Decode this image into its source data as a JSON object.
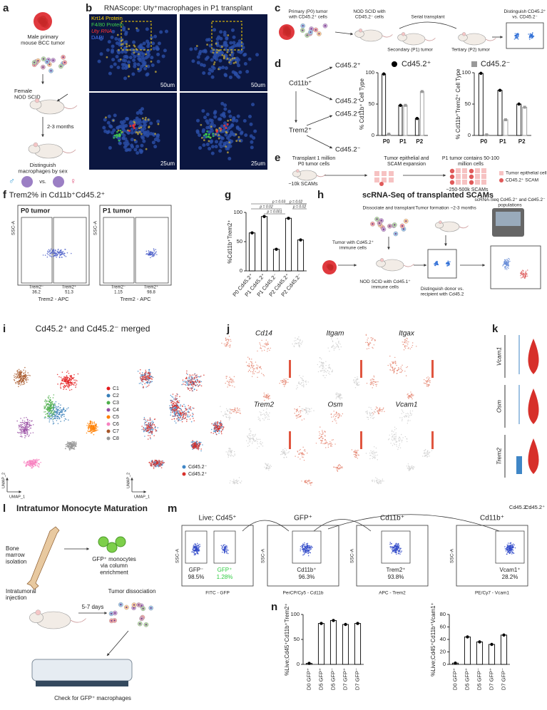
{
  "panel_labels": [
    "a",
    "b",
    "c",
    "d",
    "e",
    "f",
    "g",
    "h",
    "i",
    "j",
    "k",
    "l",
    "m",
    "n"
  ],
  "a": {
    "steps": [
      "Male primary mouse BCC tumor",
      "Female NOD SCID",
      "2-3 months",
      "Distinguish macrophages by sex",
      "vs."
    ],
    "sex_symbols": [
      "♂",
      "♀"
    ]
  },
  "b": {
    "title": "RNAScope: Uty⁺macrophages in P1 transplant",
    "legend": [
      "Krt14 Protein",
      "F4/80 Protein",
      "Uty RNA",
      "DAPI"
    ],
    "scale_top": "50um",
    "scale_bottom": "25um"
  },
  "c": {
    "steps": [
      "Primary (P0) tumor with CD45.2⁺ cells",
      "NOD SCID with CD45.2⁻ cells",
      "Serial transplant",
      "Secondary (P1) tumor",
      "Tertiary (P2) tumor",
      "Distinguish CD45.2⁺ vs. CD45.2⁻"
    ]
  },
  "d": {
    "nodes": [
      "Cd11b⁺",
      "Cd45.2⁺",
      "Cd45.2⁻",
      "Trem2⁺",
      "Cd45.2⁺",
      "Cd45.2⁻"
    ]
  },
  "e": {
    "steps": [
      "Transplant 1 million P0 tumor cells",
      "Tumor epithelial and SCAM expansion",
      "P1 tumor contains 50-100 million cells",
      "~10k SCAMs",
      "~250-500k SCAMs"
    ],
    "legend": [
      "Tumor epithelial cell",
      "CD45.2⁺ SCAM"
    ]
  },
  "f": {
    "title": "Trem2% in Cd11b⁺Cd45.2⁺",
    "y_label": "SSC-A",
    "x_label": "Trem2 - APC",
    "plots": [
      {
        "name": "P0 tumor",
        "gates": [
          {
            "label": "Trem2⁻",
            "value": 36.2
          },
          {
            "label": "Trem2⁺",
            "value": 51.3
          }
        ]
      },
      {
        "name": "P1 tumor",
        "gates": [
          {
            "label": "Trem2⁻",
            "value": 1.15
          },
          {
            "label": "Trem2⁺",
            "value": 98.8
          }
        ]
      }
    ]
  },
  "g": {
    "p_values": [
      "p = 0.03",
      "p = 0.02",
      "p = 0.001",
      "p = 0.02",
      "p = 0.02"
    ]
  },
  "h": {
    "title": "scRNA-Seq of transplanted SCAMs",
    "steps": [
      "Tumor with Cd45.2⁺ immune cells",
      "Dissociate and transplant",
      "NOD SCID with Cd45.1⁺ immune cells",
      "Tumor formation ~2-3 months",
      "Distinguish donor vs. recipient with Cd45.2",
      "scRNA-Seq Cd45.2⁺ and Cd45.2⁻ populations"
    ]
  },
  "i": {
    "title": "Cd45.2⁺ and Cd45.2⁻ merged",
    "x_label": "UMAP_1",
    "y_label": "UMAP_2",
    "clusters": [
      {
        "name": "C1",
        "color": "#e41a1c"
      },
      {
        "name": "C2",
        "color": "#377eb8"
      },
      {
        "name": "C3",
        "color": "#4daf4a"
      },
      {
        "name": "C4",
        "color": "#984ea3"
      },
      {
        "name": "C5",
        "color": "#ff7f00"
      },
      {
        "name": "C6",
        "color": "#f781bf"
      },
      {
        "name": "C7",
        "color": "#a65628"
      },
      {
        "name": "C8",
        "color": "#999999"
      }
    ],
    "groups": [
      {
        "name": "Cd45.2⁻",
        "color": "#3f86c6"
      },
      {
        "name": "Cd45.2⁺",
        "color": "#d7302a"
      }
    ]
  },
  "j": {
    "genes": [
      "Cd14",
      "Itgam",
      "Itgax",
      "Trem2",
      "Osm",
      "Vcam1"
    ]
  },
  "k": {
    "genes": [
      "Vcam1",
      "Osm",
      "Trem2"
    ],
    "groups": [
      "Cd45.2⁻",
      "Cd45.2⁺"
    ]
  },
  "l": {
    "title": "Intratumor Monocyte Maturation",
    "steps": [
      "Bone marrow isolation",
      "GFP⁺ monocytes via column enrichment",
      "Intratumoral injection",
      "5-7 days",
      "Tumor dissociation",
      "Check for GFP⁺ macrophages"
    ]
  },
  "m": {
    "y_label": "SSC-A",
    "plots": [
      {
        "title": "Live; Cd45⁺",
        "x_label": "FITC - GFP",
        "gates": [
          {
            "label": "GFP⁻",
            "value": "98.5%"
          },
          {
            "label": "GFP⁺",
            "value": "1.28%"
          }
        ]
      },
      {
        "title": "GFP⁺",
        "x_label": "PerCP/Cy5 - Cd11b",
        "gates": [
          {
            "label": "Cd11b⁺",
            "value": "96.3%"
          }
        ]
      },
      {
        "title": "Cd11b⁺",
        "x_label": "APC - Trem2",
        "gates": [
          {
            "label": "Trem2⁺",
            "value": "93.8%"
          }
        ]
      },
      {
        "title": "Cd11b⁺",
        "x_label": "PE/Cy7 - Vcam1",
        "gates": [
          {
            "label": "Vcam1⁺",
            "value": "28.2%"
          }
        ]
      }
    ]
  },
  "charts": [
    {
      "type": "bar",
      "y_label": "% Cd11b⁺ Cell Type",
      "categories": [
        "P0",
        "P1",
        "P2"
      ],
      "series": [
        {
          "name": "Cd45.2⁺",
          "color": "#000000",
          "values": [
            98,
            48,
            27
          ]
        },
        {
          "name": "Cd45.2⁻",
          "color": "#999999",
          "values": [
            2,
            48,
            70
          ]
        }
      ],
      "ylim": [
        0,
        100
      ],
      "yticks": [
        0,
        50,
        100
      ]
    },
    {
      "type": "bar",
      "y_label": "% Cd11b⁺Trem2⁺ Cell Type",
      "categories": [
        "P0",
        "P1",
        "P2"
      ],
      "series": [
        {
          "color": "#000000",
          "values": [
            99,
            72,
            50
          ]
        },
        {
          "color": "#999999",
          "values": [
            1,
            25,
            45
          ]
        }
      ],
      "ylim": [
        0,
        100
      ],
      "yticks": [
        0,
        50,
        100
      ]
    },
    {
      "type": "bar",
      "y_label": "%Cd11b⁺Trem2⁺",
      "categories": [
        "P0 Cd45.2⁺",
        "P1 Cd45.2⁺",
        "P1 Cd45.2⁻",
        "P2 Cd45.2⁺",
        "P2 Cd45.2⁻"
      ],
      "values": [
        65,
        93,
        37,
        90,
        53
      ],
      "color": "#000000",
      "ylim": [
        0,
        100
      ],
      "yticks": [
        0,
        50,
        100
      ]
    },
    {
      "type": "bar",
      "y_label": "%Live;Cd45⁺Cd11b⁺Trem2⁺",
      "categories": [
        "D0 GFP⁺",
        "D5 GFP⁺",
        "D5 GFP⁻",
        "D7 GFP⁺",
        "D7 GFP⁻"
      ],
      "values": [
        2,
        82,
        88,
        80,
        82
      ],
      "color": "#000000",
      "ylim": [
        0,
        100
      ],
      "yticks": [
        0,
        50,
        100
      ]
    },
    {
      "type": "bar",
      "y_label": "%Live;Cd45⁺Cd11b⁺Vcam1⁺",
      "categories": [
        "D0 GFP⁺",
        "D5 GFP⁺",
        "D5 GFP⁻",
        "D7 GFP⁺",
        "D7 GFP⁻"
      ],
      "values": [
        2,
        44,
        36,
        32,
        47
      ],
      "color": "#000000",
      "ylim": [
        0,
        80
      ],
      "yticks": [
        0,
        20,
        40,
        60,
        80
      ]
    }
  ]
}
